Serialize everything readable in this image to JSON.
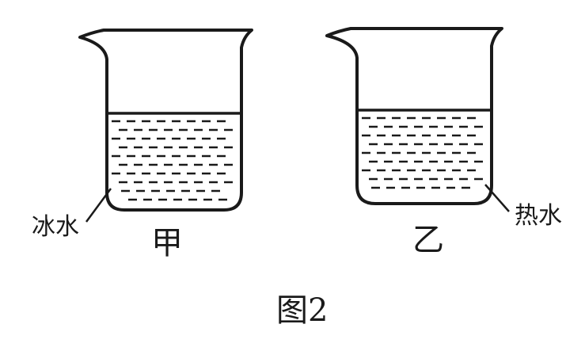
{
  "figure": {
    "caption": "图2",
    "stroke_color": "#1a1a1a",
    "background_color": "#ffffff"
  },
  "beakers": [
    {
      "id": "left",
      "name": "甲",
      "liquid": "冰水"
    },
    {
      "id": "right",
      "name": "乙",
      "liquid": "热水"
    }
  ]
}
